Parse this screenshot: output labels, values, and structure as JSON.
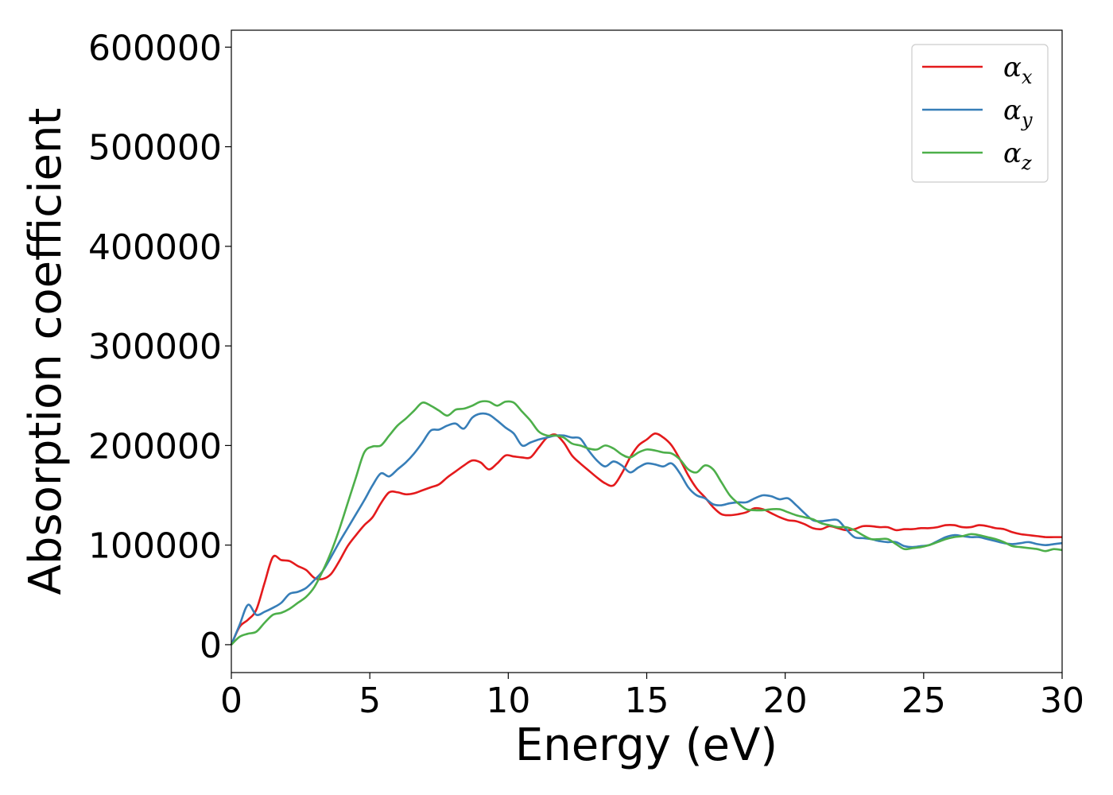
{
  "chart_data": {
    "type": "line",
    "title": "",
    "xlabel": "Energy (eV)",
    "ylabel": "Absorption coefficient",
    "xlim": [
      0,
      30
    ],
    "ylim": [
      -28000,
      617000
    ],
    "xticks": [
      0,
      5,
      10,
      15,
      20,
      25,
      30
    ],
    "xtick_labels": [
      "0",
      "5",
      "10",
      "15",
      "20",
      "25",
      "30"
    ],
    "yticks": [
      0,
      100000,
      200000,
      300000,
      400000,
      500000,
      600000
    ],
    "ytick_labels": [
      "0",
      "100000",
      "200000",
      "300000",
      "400000",
      "500000",
      "600000"
    ],
    "grid": false,
    "legend_position": "top-right",
    "series": [
      {
        "name": "α_x",
        "legend_base": "α",
        "legend_sub": "x",
        "color": "#e41a1c",
        "x": [
          0,
          0.3,
          0.6,
          0.9,
          1.2,
          1.5,
          1.8,
          2.1,
          2.4,
          2.7,
          3.0,
          3.3,
          3.6,
          3.9,
          4.2,
          4.5,
          4.8,
          5.1,
          5.4,
          5.7,
          6.0,
          6.3,
          6.6,
          6.9,
          7.2,
          7.5,
          7.8,
          8.1,
          8.4,
          8.7,
          9.0,
          9.3,
          9.6,
          9.9,
          10.2,
          10.5,
          10.8,
          11.1,
          11.4,
          11.7,
          12.0,
          12.3,
          12.6,
          12.9,
          13.2,
          13.5,
          13.8,
          14.1,
          14.4,
          14.7,
          15.0,
          15.3,
          15.6,
          15.9,
          16.2,
          16.5,
          16.8,
          17.1,
          17.4,
          17.7,
          18.0,
          18.3,
          18.6,
          18.9,
          19.2,
          19.5,
          19.8,
          20.1,
          20.4,
          20.7,
          21.0,
          21.3,
          21.6,
          21.9,
          22.2,
          22.5,
          22.8,
          23.1,
          23.4,
          23.7,
          24.0,
          24.3,
          24.6,
          24.9,
          25.2,
          25.5,
          25.8,
          26.1,
          26.4,
          26.7,
          27.0,
          27.3,
          27.6,
          27.9,
          28.2,
          28.5,
          28.8,
          29.1,
          29.4,
          29.7,
          30.0
        ],
        "y": [
          0,
          18000,
          25000,
          35000,
          62000,
          88000,
          85000,
          84000,
          79000,
          75000,
          67000,
          66000,
          71000,
          84000,
          99000,
          110000,
          120000,
          128000,
          142000,
          153000,
          153000,
          151000,
          152000,
          155000,
          158000,
          161000,
          168000,
          174000,
          180000,
          185000,
          183000,
          176000,
          182000,
          190000,
          189000,
          188000,
          188000,
          198000,
          208000,
          211000,
          203000,
          190000,
          182000,
          175000,
          168000,
          162000,
          160000,
          172000,
          188000,
          200000,
          206000,
          212000,
          208000,
          200000,
          186000,
          170000,
          157000,
          148000,
          138000,
          131000,
          130000,
          131000,
          133000,
          137000,
          136000,
          132000,
          128000,
          125000,
          124000,
          121000,
          117000,
          116000,
          119000,
          117000,
          115000,
          116000,
          119000,
          119000,
          118000,
          118000,
          115000,
          116000,
          116000,
          117000,
          117000,
          118000,
          120000,
          120000,
          118000,
          118000,
          120000,
          119000,
          117000,
          116000,
          113000,
          111000,
          110000,
          109000,
          108000,
          108000,
          108000
        ]
      },
      {
        "name": "α_y",
        "legend_base": "α",
        "legend_sub": "y",
        "color": "#377eb8",
        "x": [
          0,
          0.3,
          0.6,
          0.9,
          1.2,
          1.5,
          1.8,
          2.1,
          2.4,
          2.7,
          3.0,
          3.3,
          3.6,
          3.9,
          4.2,
          4.5,
          4.8,
          5.1,
          5.4,
          5.7,
          6.0,
          6.3,
          6.6,
          6.9,
          7.2,
          7.5,
          7.8,
          8.1,
          8.4,
          8.7,
          9.0,
          9.3,
          9.6,
          9.9,
          10.2,
          10.5,
          10.8,
          11.1,
          11.4,
          11.7,
          12.0,
          12.3,
          12.6,
          12.9,
          13.2,
          13.5,
          13.8,
          14.1,
          14.4,
          14.7,
          15.0,
          15.3,
          15.6,
          15.9,
          16.2,
          16.5,
          16.8,
          17.1,
          17.4,
          17.7,
          18.0,
          18.3,
          18.6,
          18.9,
          19.2,
          19.5,
          19.8,
          20.1,
          20.4,
          20.7,
          21.0,
          21.3,
          21.6,
          21.9,
          22.2,
          22.5,
          22.8,
          23.1,
          23.4,
          23.7,
          24.0,
          24.3,
          24.6,
          24.9,
          25.2,
          25.5,
          25.8,
          26.1,
          26.4,
          26.7,
          27.0,
          27.3,
          27.6,
          27.9,
          28.2,
          28.5,
          28.8,
          29.1,
          29.4,
          29.7,
          30.0
        ],
        "y": [
          0,
          20000,
          40000,
          30000,
          33000,
          37000,
          42000,
          51000,
          53000,
          57000,
          65000,
          74000,
          88000,
          103000,
          117000,
          131000,
          145000,
          160000,
          172000,
          169000,
          176000,
          183000,
          192000,
          203000,
          215000,
          216000,
          220000,
          222000,
          217000,
          228000,
          232000,
          231000,
          225000,
          218000,
          212000,
          200000,
          203000,
          206000,
          208000,
          210000,
          210000,
          208000,
          207000,
          195000,
          185000,
          179000,
          184000,
          180000,
          173000,
          178000,
          182000,
          181000,
          179000,
          182000,
          172000,
          158000,
          150000,
          147000,
          141000,
          140000,
          142000,
          143000,
          143000,
          147000,
          150000,
          149000,
          146000,
          147000,
          140000,
          132000,
          125000,
          124000,
          125000,
          125000,
          116000,
          108000,
          107000,
          106000,
          104000,
          103000,
          103000,
          99000,
          98000,
          99000,
          100000,
          104000,
          108000,
          110000,
          109000,
          108000,
          108000,
          106000,
          104000,
          102000,
          101000,
          102000,
          103000,
          101000,
          100000,
          101000,
          102000
        ]
      },
      {
        "name": "α_z",
        "legend_base": "α",
        "legend_sub": "z",
        "color": "#4daf4a",
        "x": [
          0,
          0.3,
          0.6,
          0.9,
          1.2,
          1.5,
          1.8,
          2.1,
          2.4,
          2.7,
          3.0,
          3.3,
          3.6,
          3.9,
          4.2,
          4.5,
          4.8,
          5.1,
          5.4,
          5.7,
          6.0,
          6.3,
          6.6,
          6.9,
          7.2,
          7.5,
          7.8,
          8.1,
          8.4,
          8.7,
          9.0,
          9.3,
          9.6,
          9.9,
          10.2,
          10.5,
          10.8,
          11.1,
          11.4,
          11.7,
          12.0,
          12.3,
          12.6,
          12.9,
          13.2,
          13.5,
          13.8,
          14.1,
          14.4,
          14.7,
          15.0,
          15.3,
          15.6,
          15.9,
          16.2,
          16.5,
          16.8,
          17.1,
          17.4,
          17.7,
          18.0,
          18.3,
          18.6,
          18.9,
          19.2,
          19.5,
          19.8,
          20.1,
          20.4,
          20.7,
          21.0,
          21.3,
          21.6,
          21.9,
          22.2,
          22.5,
          22.8,
          23.1,
          23.4,
          23.7,
          24.0,
          24.3,
          24.6,
          24.9,
          25.2,
          25.5,
          25.8,
          26.1,
          26.4,
          26.7,
          27.0,
          27.3,
          27.6,
          27.9,
          28.2,
          28.5,
          28.8,
          29.1,
          29.4,
          29.7,
          30.0
        ],
        "y": [
          0,
          8000,
          11000,
          13000,
          22000,
          30000,
          32000,
          36000,
          42000,
          48000,
          58000,
          74000,
          93000,
          116000,
          142000,
          168000,
          193000,
          199000,
          200000,
          210000,
          220000,
          227000,
          235000,
          243000,
          240000,
          235000,
          230000,
          236000,
          237000,
          240000,
          244000,
          244000,
          240000,
          244000,
          243000,
          234000,
          225000,
          214000,
          210000,
          210000,
          208000,
          202000,
          200000,
          197000,
          196000,
          200000,
          197000,
          191000,
          188000,
          193000,
          196000,
          195000,
          193000,
          192000,
          186000,
          176000,
          173000,
          180000,
          176000,
          163000,
          150000,
          142000,
          136000,
          135000,
          135000,
          136000,
          136000,
          133000,
          130000,
          128000,
          126000,
          122000,
          120000,
          118000,
          118000,
          115000,
          110000,
          106000,
          106000,
          106000,
          101000,
          96000,
          97000,
          98000,
          100000,
          103000,
          106000,
          108000,
          109000,
          111000,
          110000,
          108000,
          106000,
          103000,
          99000,
          98000,
          97000,
          96000,
          94000,
          96000,
          95000
        ]
      }
    ]
  }
}
